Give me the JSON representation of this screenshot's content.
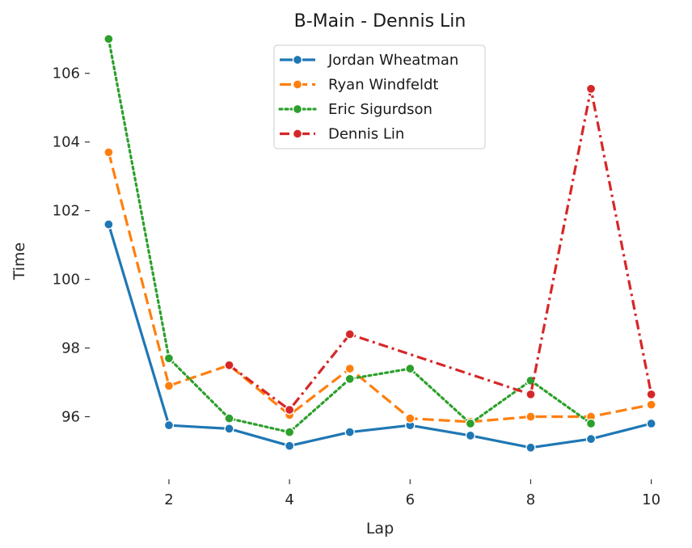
{
  "chart_data": {
    "type": "line",
    "title": "B-Main - Dennis Lin",
    "xlabel": "Lap",
    "ylabel": "Time",
    "xlim": [
      0.7,
      10.3
    ],
    "ylim": [
      94.2,
      107.1
    ],
    "xticks": [
      2,
      4,
      6,
      8,
      10
    ],
    "yticks": [
      96,
      98,
      100,
      102,
      104,
      106
    ],
    "grid": false,
    "legend_position": "top-center",
    "series": [
      {
        "name": "Jordan Wheatman",
        "color": "#1f77b4",
        "dash": "solid",
        "x": [
          1,
          2,
          3,
          4,
          5,
          6,
          7,
          8,
          9,
          10
        ],
        "y": [
          101.6,
          95.75,
          95.65,
          95.15,
          95.55,
          95.75,
          95.45,
          95.1,
          95.35,
          95.8
        ]
      },
      {
        "name": "Ryan Windfeldt",
        "color": "#ff7f0e",
        "dash": "dashed",
        "x": [
          1,
          2,
          3,
          4,
          5,
          6,
          7,
          8,
          9,
          10
        ],
        "y": [
          103.7,
          96.9,
          97.5,
          96.05,
          97.4,
          95.95,
          95.85,
          96.0,
          96.0,
          96.35
        ]
      },
      {
        "name": "Eric Sigurdson",
        "color": "#2ca02c",
        "dash": "dotted",
        "x": [
          1,
          2,
          3,
          4,
          5,
          6,
          7,
          8,
          9
        ],
        "y": [
          107.0,
          97.7,
          95.95,
          95.55,
          97.1,
          97.4,
          95.8,
          97.05,
          95.8
        ]
      },
      {
        "name": "Dennis Lin",
        "color": "#d62728",
        "dash": "dashdot",
        "x": [
          3,
          4,
          5,
          8,
          9,
          10
        ],
        "y": [
          97.5,
          96.2,
          98.4,
          96.65,
          105.55,
          96.65
        ]
      }
    ]
  }
}
